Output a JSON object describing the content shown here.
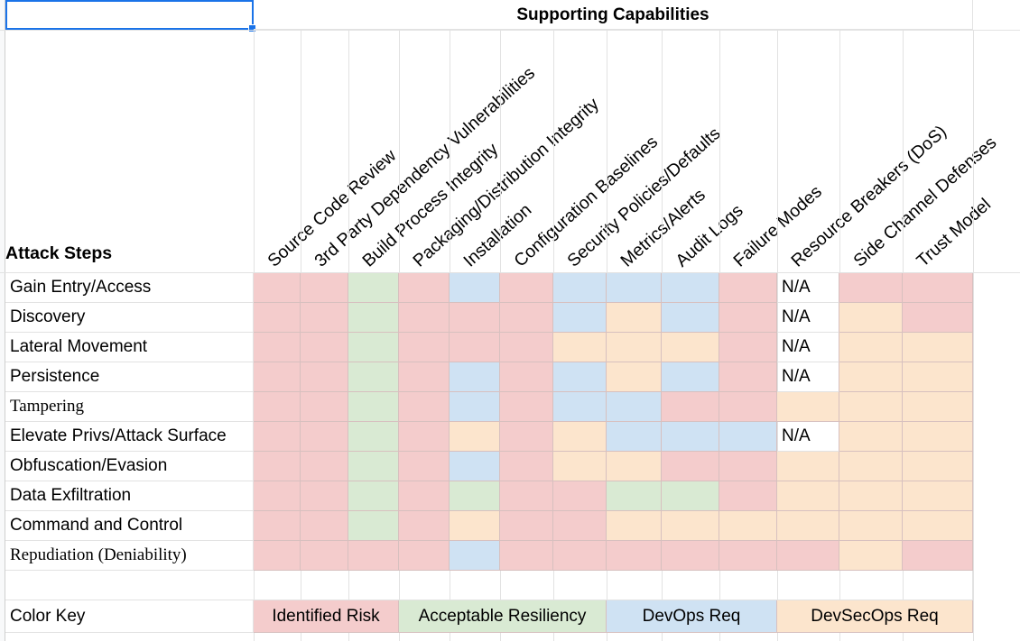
{
  "sheet": {
    "title": "Supporting Capabilities",
    "row_header_title": "Attack Steps",
    "columns": [
      "Source Code Review",
      "3rd Party Dependency Vulnerabilities",
      "Build Process Integrity",
      "Packaging/Distribution Integrity",
      "Installation",
      "Configuration Baselines",
      "Security Policies/Defaults",
      "Metrics/Alerts",
      "Audit Logs",
      "Failure Modes",
      "Resource Breakers (DoS)",
      "Side Channel Defenses",
      "Trust Model"
    ],
    "rows": [
      {
        "label": "Gain Entry/Access",
        "serif": false,
        "cells": [
          "R",
          "R",
          "G",
          "R",
          "B",
          "R",
          "B",
          "B",
          "B",
          "R",
          "W:N/A",
          "R",
          "R"
        ]
      },
      {
        "label": "Discovery",
        "serif": false,
        "cells": [
          "R",
          "R",
          "G",
          "R",
          "R",
          "R",
          "B",
          "O",
          "B",
          "R",
          "W:N/A",
          "O",
          "R"
        ]
      },
      {
        "label": "Lateral Movement",
        "serif": false,
        "cells": [
          "R",
          "R",
          "G",
          "R",
          "R",
          "R",
          "O",
          "O",
          "O",
          "R",
          "W:N/A",
          "O",
          "O"
        ]
      },
      {
        "label": "Persistence",
        "serif": false,
        "cells": [
          "R",
          "R",
          "G",
          "R",
          "B",
          "R",
          "B",
          "O",
          "B",
          "R",
          "W:N/A",
          "O",
          "O"
        ]
      },
      {
        "label": "Tampering",
        "serif": true,
        "cells": [
          "R",
          "R",
          "G",
          "R",
          "B",
          "R",
          "B",
          "B",
          "R",
          "R",
          "O",
          "O",
          "O"
        ]
      },
      {
        "label": "Elevate Privs/Attack Surface",
        "serif": false,
        "cells": [
          "R",
          "R",
          "G",
          "R",
          "O",
          "R",
          "O",
          "B",
          "B",
          "B",
          "W:N/A",
          "O",
          "O"
        ]
      },
      {
        "label": "Obfuscation/Evasion",
        "serif": false,
        "cells": [
          "R",
          "R",
          "G",
          "R",
          "B",
          "R",
          "O",
          "O",
          "R",
          "R",
          "O",
          "O",
          "O"
        ]
      },
      {
        "label": "Data Exfiltration",
        "serif": false,
        "cells": [
          "R",
          "R",
          "G",
          "R",
          "G",
          "R",
          "R",
          "G",
          "G",
          "R",
          "O",
          "O",
          "O"
        ]
      },
      {
        "label": "Command and Control",
        "serif": false,
        "cells": [
          "R",
          "R",
          "G",
          "R",
          "O",
          "R",
          "R",
          "O",
          "O",
          "O",
          "O",
          "O",
          "O"
        ]
      },
      {
        "label": "Repudiation (Deniability)",
        "serif": true,
        "cells": [
          "R",
          "R",
          "R",
          "R",
          "B",
          "R",
          "R",
          "R",
          "R",
          "R",
          "R",
          "O",
          "R"
        ]
      }
    ],
    "color_key": {
      "label": "Color Key",
      "items": [
        {
          "text": "Identified Risk",
          "code": "R"
        },
        {
          "text": "Acceptable Resiliency",
          "code": "G"
        },
        {
          "text": "DevOps Req",
          "code": "B"
        },
        {
          "text": "DevSecOps Req",
          "code": "O"
        }
      ]
    },
    "colors": {
      "risk": "#f4cccc",
      "resiliency": "#d9ead3",
      "devops": "#cfe2f3",
      "devsecops": "#fce5cd",
      "selection": "#1a73e8"
    }
  }
}
